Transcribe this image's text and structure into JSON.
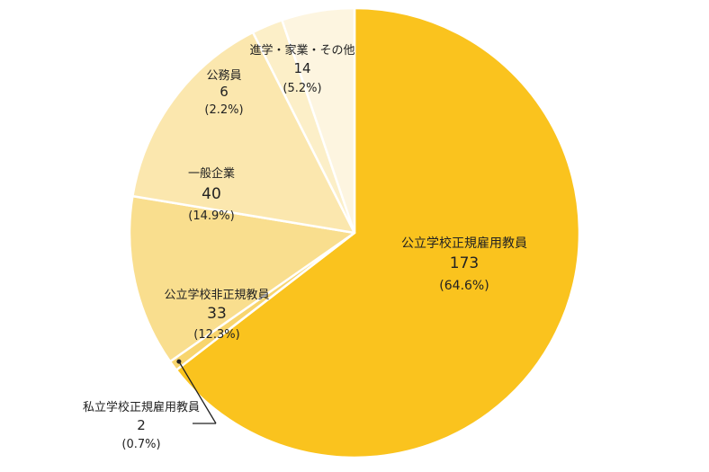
{
  "chart_data": {
    "type": "pie",
    "title": "",
    "slices": [
      {
        "label": "公立学校正規雇用教員",
        "value": 173,
        "percent": "(64.6%)",
        "color": "#FAC31E"
      },
      {
        "label": "私立学校正規雇用教員",
        "value": 2,
        "percent": "(0.7%)",
        "color": "#F8D56E"
      },
      {
        "label": "公立学校非正規教員",
        "value": 33,
        "percent": "(12.3%)",
        "color": "#F9DE8E"
      },
      {
        "label": "一般企業",
        "value": 40,
        "percent": "(14.9%)",
        "color": "#FBE7AE"
      },
      {
        "label": "公務員",
        "value": 6,
        "percent": "(2.2%)",
        "color": "#FCEFC8"
      },
      {
        "label": "進学・家業・その他",
        "value": 14,
        "percent": "(5.2%)",
        "color": "#FDF5E0"
      }
    ]
  }
}
